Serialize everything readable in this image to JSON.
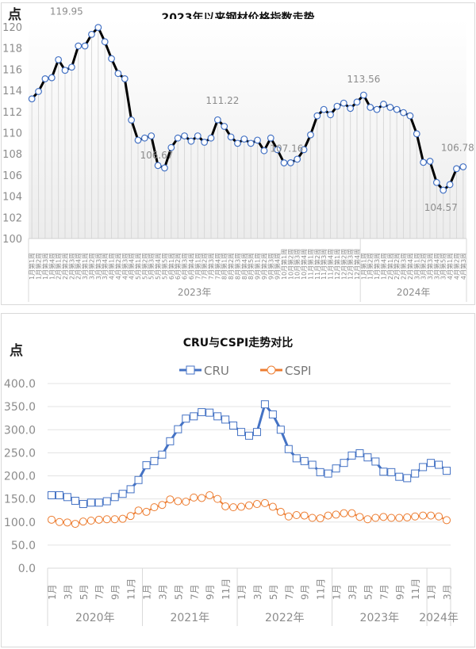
{
  "chart_data": [
    {
      "type": "line",
      "title": "2023年以来钢材价格指数走势",
      "ylabel": "点",
      "ylim": [
        100,
        120
      ],
      "yticks": [
        "100",
        "102",
        "104",
        "106",
        "108",
        "110",
        "112",
        "114",
        "116",
        "118",
        "120"
      ],
      "year_groups": [
        {
          "label": "2023年",
          "months": [
            4,
            4,
            4,
            4,
            5,
            4,
            4,
            5,
            4,
            4,
            4,
            4
          ]
        },
        {
          "label": "2024年",
          "months": [
            4,
            4,
            5,
            3
          ]
        }
      ],
      "values": [
        113.2,
        113.9,
        115.1,
        115.2,
        116.9,
        115.9,
        116.2,
        118.2,
        118.2,
        119.3,
        119.95,
        118.6,
        117.0,
        115.6,
        115.1,
        111.2,
        109.3,
        109.5,
        109.7,
        106.9,
        106.67,
        108.6,
        109.5,
        109.7,
        109.2,
        109.7,
        109.1,
        109.5,
        111.22,
        110.6,
        109.6,
        109.0,
        109.4,
        109.0,
        109.3,
        108.3,
        109.5,
        108.4,
        107.15,
        107.16,
        107.5,
        108.4,
        109.8,
        111.6,
        112.2,
        111.7,
        112.5,
        112.8,
        112.3,
        112.9,
        113.56,
        112.4,
        112.2,
        112.7,
        112.4,
        112.2,
        111.9,
        111.6,
        109.9,
        107.2,
        107.3,
        105.3,
        104.57,
        105.1,
        106.6,
        106.78
      ],
      "data_labels": [
        {
          "index": 10,
          "text": "119.95"
        },
        {
          "index": 20,
          "text": "106.67"
        },
        {
          "index": 28,
          "text": "111.22"
        },
        {
          "index": 39,
          "text": "107.16"
        },
        {
          "index": 50,
          "text": "113.56"
        },
        {
          "index": 62,
          "text": "104.57"
        },
        {
          "index": 65,
          "text": "106.78"
        }
      ],
      "grid": false,
      "colors": {
        "line": "#000000",
        "marker": "#4472c4",
        "label": "#8c8c8c"
      }
    },
    {
      "type": "line",
      "title": "CRU与CSPI走势对比",
      "ylabel": "点",
      "ylim": [
        0,
        400
      ],
      "yticks": [
        "0.0",
        "50.0",
        "100.0",
        "150.0",
        "200.0",
        "250.0",
        "300.0",
        "350.0",
        "400.0"
      ],
      "legend_position": "top",
      "grid": true,
      "years": [
        "2020年",
        "2021年",
        "2022年",
        "2023年",
        "2024年"
      ],
      "month_labels": [
        "1月",
        "3月",
        "5月",
        "7月",
        "9月",
        "11月"
      ],
      "months_2024": [
        "1月",
        "3月"
      ],
      "series": [
        {
          "name": "CRU",
          "color": "#4472c4",
          "marker": "square",
          "values": [
            158,
            158,
            154,
            146,
            139,
            142,
            142,
            145,
            154,
            161,
            171,
            191,
            223,
            232,
            246,
            275,
            301,
            324,
            329,
            338,
            337,
            329,
            322,
            309,
            295,
            287,
            295,
            355,
            333,
            300,
            258,
            238,
            232,
            224,
            208,
            205,
            216,
            228,
            244,
            249,
            240,
            231,
            209,
            208,
            198,
            195,
            205,
            219,
            228,
            224,
            211
          ]
        },
        {
          "name": "CSPI",
          "color": "#ed7d31",
          "marker": "circle",
          "values": [
            105,
            100,
            99,
            96,
            101,
            103,
            105,
            106,
            106,
            107,
            113,
            125,
            122,
            132,
            137,
            149,
            145,
            144,
            153,
            152,
            158,
            150,
            134,
            132,
            133,
            136,
            139,
            141,
            133,
            122,
            112,
            115,
            114,
            109,
            108,
            114,
            116,
            119,
            119,
            111,
            106,
            109,
            111,
            109,
            109,
            110,
            112,
            114,
            114,
            112,
            104
          ]
        }
      ]
    }
  ]
}
